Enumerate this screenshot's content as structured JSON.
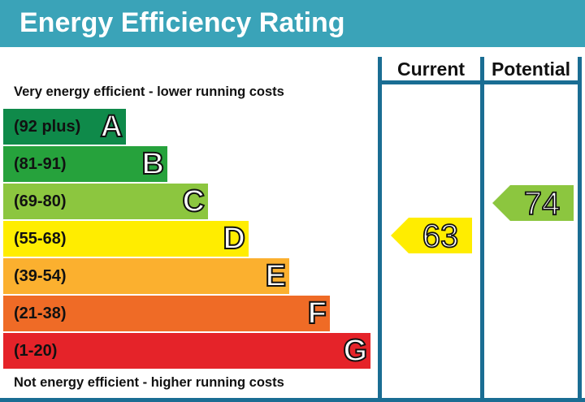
{
  "title": "Energy Efficiency Rating",
  "columns": {
    "current": "Current",
    "potential": "Potential"
  },
  "top_caption": "Very energy efficient - lower running costs",
  "bottom_caption": "Not energy efficient - higher running costs",
  "bands": [
    {
      "range": "(92 plus)",
      "letter": "A",
      "color": "#0f8a4a"
    },
    {
      "range": "(81-91)",
      "letter": "B",
      "color": "#26a23c"
    },
    {
      "range": "(69-80)",
      "letter": "C",
      "color": "#8cc63f"
    },
    {
      "range": "(55-68)",
      "letter": "D",
      "color": "#ffed00"
    },
    {
      "range": "(39-54)",
      "letter": "E",
      "color": "#fbb02f"
    },
    {
      "range": "(21-38)",
      "letter": "F",
      "color": "#ef6b26"
    },
    {
      "range": "(1-20)",
      "letter": "G",
      "color": "#e52329"
    }
  ],
  "current": {
    "value": "63",
    "band": "D",
    "color": "#ffed00"
  },
  "potential": {
    "value": "74",
    "band": "C",
    "color": "#8cc63f"
  },
  "colors": {
    "header": "#3aa3b8",
    "frame": "#1a6d93"
  }
}
